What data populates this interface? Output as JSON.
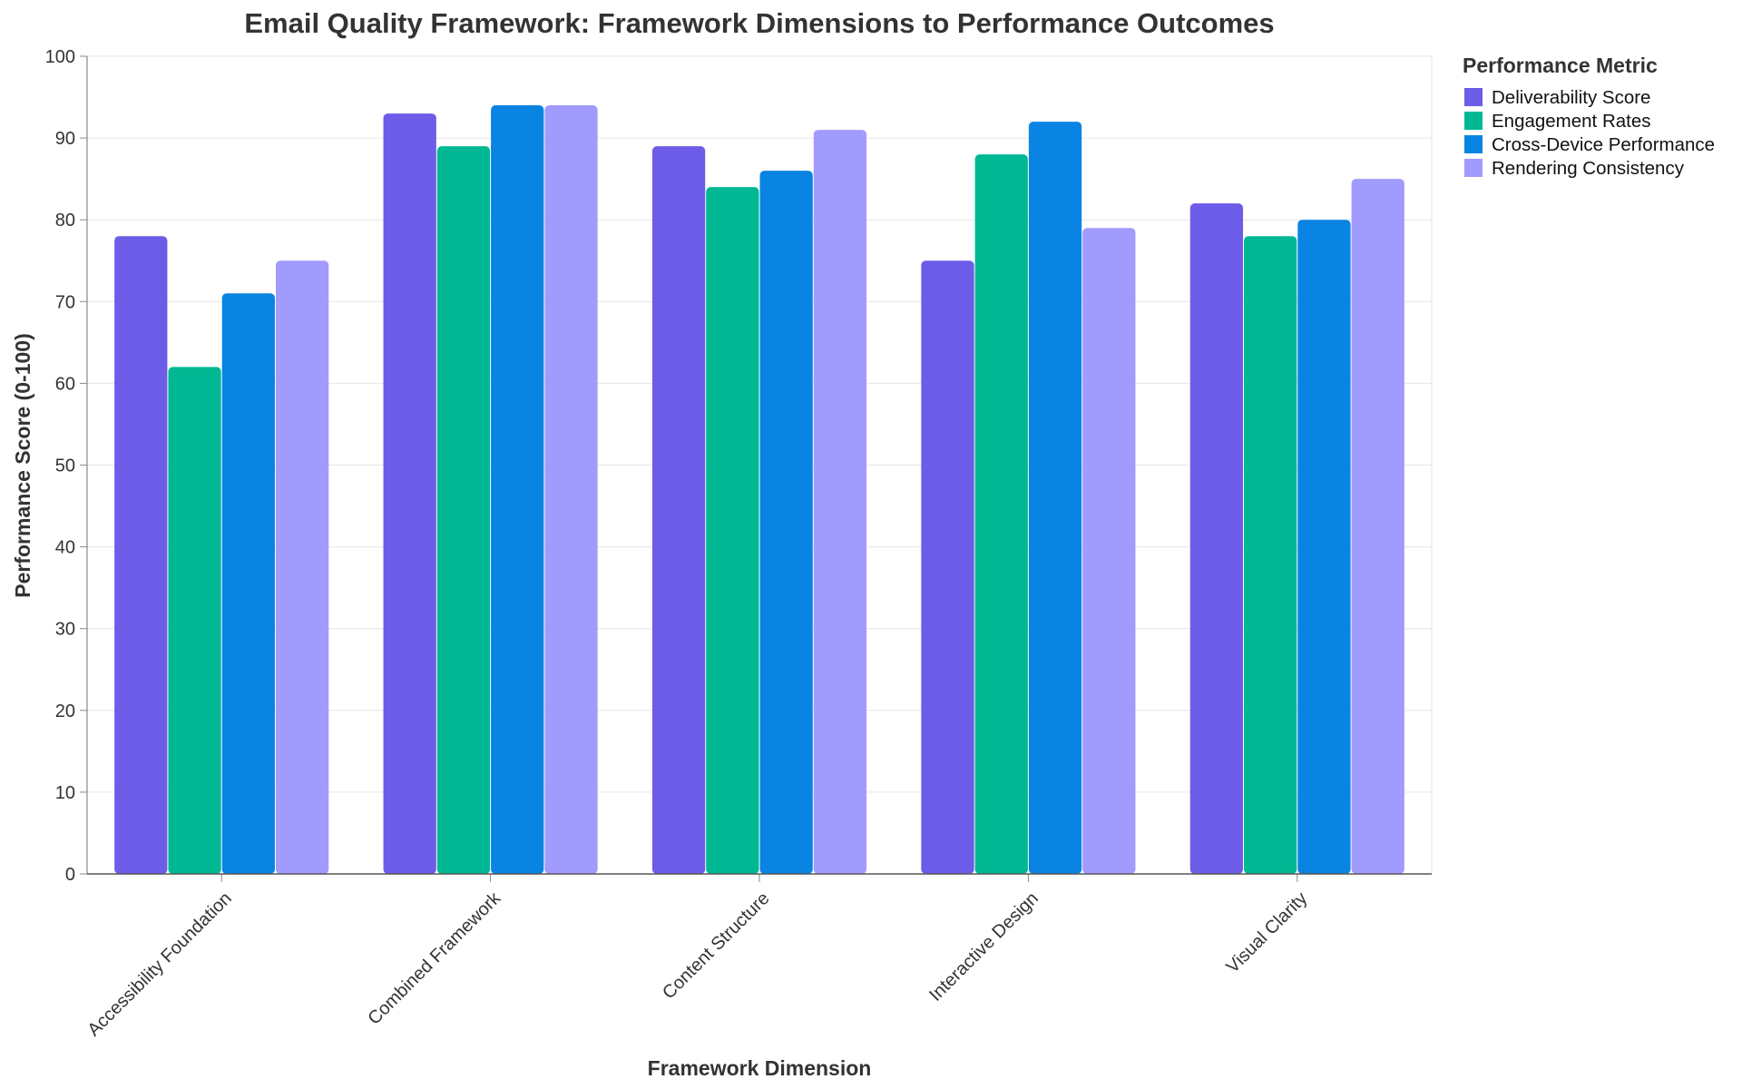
{
  "chart_data": {
    "type": "bar",
    "title": "Email Quality Framework: Framework Dimensions to Performance Outcomes",
    "xlabel": "Framework Dimension",
    "ylabel": "Performance Score (0-100)",
    "ylim": [
      0,
      100
    ],
    "yticks": [
      0,
      10,
      20,
      30,
      40,
      50,
      60,
      70,
      80,
      90,
      100
    ],
    "grid": true,
    "legend_title": "Performance Metric",
    "legend_position": "right",
    "categories": [
      "Accessibility Foundation",
      "Combined Framework",
      "Content Structure",
      "Interactive Design",
      "Visual Clarity"
    ],
    "series": [
      {
        "name": "Deliverability Score",
        "color": "#6c5ce7",
        "values": [
          78,
          93,
          89,
          75,
          82
        ]
      },
      {
        "name": "Engagement Rates",
        "color": "#00b894",
        "values": [
          62,
          89,
          84,
          88,
          78
        ]
      },
      {
        "name": "Cross-Device Performance",
        "color": "#0984e3",
        "values": [
          71,
          94,
          86,
          92,
          80
        ]
      },
      {
        "name": "Rendering Consistency",
        "color": "#a29bfe",
        "values": [
          75,
          94,
          91,
          79,
          85
        ]
      }
    ]
  }
}
